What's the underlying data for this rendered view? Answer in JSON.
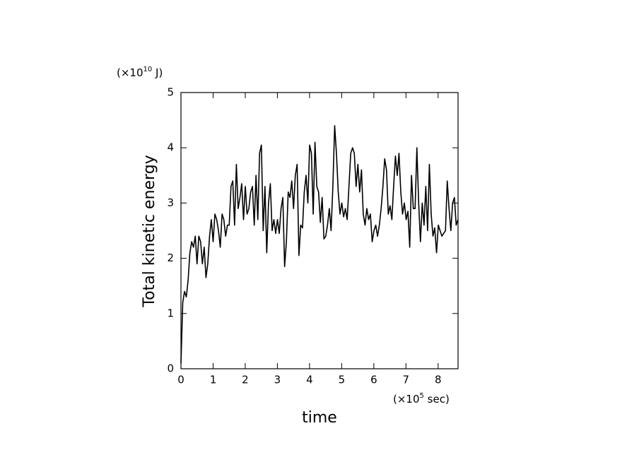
{
  "chart_data": {
    "type": "line",
    "y_axis_label": "Total kinetic energy",
    "x_axis_label": "time",
    "y_unit": {
      "prefix": "(×10",
      "exponent": "10",
      "suffix": " J)"
    },
    "x_unit": {
      "prefix": "(×10",
      "exponent": "5",
      "suffix": " sec)"
    },
    "xlim": [
      0,
      8.62
    ],
    "ylim": [
      0,
      5
    ],
    "xticks": [
      0,
      1,
      2,
      3,
      4,
      5,
      6,
      7,
      8
    ],
    "yticks": [
      0,
      1,
      2,
      3,
      4,
      5
    ],
    "grid": false,
    "x": [
      0,
      0.056,
      0.111,
      0.167,
      0.222,
      0.278,
      0.334,
      0.389,
      0.445,
      0.5,
      0.556,
      0.612,
      0.667,
      0.723,
      0.778,
      0.834,
      0.89,
      0.945,
      1.001,
      1.056,
      1.112,
      1.168,
      1.223,
      1.279,
      1.334,
      1.39,
      1.446,
      1.501,
      1.557,
      1.612,
      1.668,
      1.724,
      1.779,
      1.835,
      1.89,
      1.946,
      2.002,
      2.057,
      2.113,
      2.168,
      2.224,
      2.28,
      2.335,
      2.391,
      2.446,
      2.502,
      2.558,
      2.613,
      2.669,
      2.724,
      2.78,
      2.836,
      2.891,
      2.947,
      3.002,
      3.058,
      3.114,
      3.169,
      3.225,
      3.28,
      3.336,
      3.392,
      3.447,
      3.503,
      3.558,
      3.614,
      3.67,
      3.725,
      3.781,
      3.836,
      3.892,
      3.948,
      4.003,
      4.059,
      4.114,
      4.17,
      4.226,
      4.281,
      4.337,
      4.392,
      4.448,
      4.504,
      4.559,
      4.615,
      4.67,
      4.726,
      4.782,
      4.837,
      4.893,
      4.948,
      5.004,
      5.06,
      5.115,
      5.171,
      5.226,
      5.282,
      5.338,
      5.393,
      5.449,
      5.504,
      5.56,
      5.616,
      5.671,
      5.727,
      5.782,
      5.838,
      5.894,
      5.949,
      6.005,
      6.06,
      6.116,
      6.172,
      6.227,
      6.283,
      6.338,
      6.394,
      6.45,
      6.505,
      6.561,
      6.616,
      6.672,
      6.728,
      6.783,
      6.839,
      6.894,
      6.95,
      7.006,
      7.061,
      7.117,
      7.172,
      7.228,
      7.284,
      7.339,
      7.395,
      7.45,
      7.506,
      7.562,
      7.617,
      7.673,
      7.728,
      7.784,
      7.84,
      7.895,
      7.951,
      8.006,
      8.062,
      8.118,
      8.173,
      8.229,
      8.284,
      8.34,
      8.396,
      8.451,
      8.507,
      8.562,
      8.618
    ],
    "series": [
      {
        "color": "#000000",
        "values": [
          0.1,
          1.2,
          1.4,
          1.3,
          1.6,
          2.1,
          2.3,
          2.2,
          2.4,
          1.9,
          2.4,
          2.3,
          1.9,
          2.2,
          1.65,
          1.9,
          2.4,
          2.7,
          2.3,
          2.8,
          2.7,
          2.5,
          2.2,
          2.8,
          2.7,
          2.4,
          2.6,
          2.6,
          3.3,
          3.4,
          2.6,
          3.7,
          2.9,
          3.1,
          3.35,
          2.7,
          3.3,
          2.8,
          2.9,
          3.2,
          3.3,
          2.6,
          3.5,
          2.7,
          3.9,
          4.05,
          2.5,
          3.3,
          2.1,
          3.0,
          3.35,
          2.5,
          2.7,
          2.45,
          2.7,
          2.45,
          2.9,
          3.1,
          1.85,
          2.3,
          3.2,
          3.1,
          3.4,
          2.9,
          3.5,
          3.7,
          2.05,
          2.6,
          2.55,
          3.2,
          3.5,
          3.0,
          4.05,
          3.9,
          2.8,
          4.1,
          3.3,
          3.2,
          2.65,
          3.1,
          2.35,
          2.4,
          2.6,
          2.9,
          2.5,
          3.3,
          4.4,
          3.9,
          3.2,
          2.8,
          3.0,
          2.75,
          2.9,
          2.7,
          3.3,
          3.9,
          4.0,
          3.9,
          3.3,
          3.7,
          3.2,
          3.6,
          2.8,
          2.6,
          2.9,
          2.7,
          2.8,
          2.3,
          2.5,
          2.6,
          2.4,
          2.6,
          2.9,
          3.3,
          3.8,
          3.6,
          2.8,
          2.95,
          2.7,
          3.3,
          3.85,
          3.5,
          3.9,
          3.2,
          2.8,
          3.0,
          2.7,
          2.85,
          2.2,
          3.5,
          2.9,
          2.9,
          4.0,
          3.0,
          2.3,
          3.0,
          2.6,
          3.3,
          2.5,
          3.7,
          2.8,
          2.4,
          2.55,
          2.1,
          2.6,
          2.5,
          2.4,
          2.45,
          2.5,
          3.4,
          2.9,
          2.5,
          3.0,
          3.1,
          2.6,
          2.7
        ]
      }
    ]
  }
}
